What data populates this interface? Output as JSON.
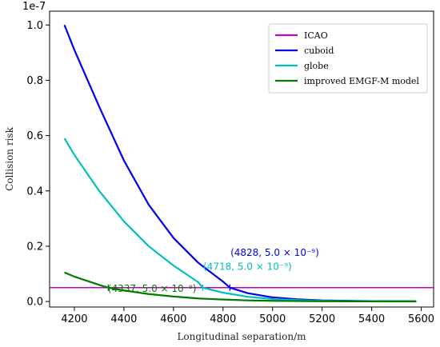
{
  "chart_data": {
    "type": "line",
    "xlabel": "Longitudinal separation/m",
    "ylabel": "Collision risk",
    "y_offset_label": "1e-7",
    "xlim": [
      4100,
      5650
    ],
    "ylim": [
      -0.02,
      1.05
    ],
    "x_ticks": [
      4200,
      4400,
      4600,
      4800,
      5000,
      5200,
      5400,
      5600
    ],
    "y_ticks": [
      0.0,
      0.2,
      0.4,
      0.6,
      0.8,
      1.0
    ],
    "x_tick_labels": [
      "4200",
      "4400",
      "4600",
      "4800",
      "5000",
      "5200",
      "5400",
      "5600"
    ],
    "y_tick_labels": [
      "0.0",
      "0.2",
      "0.4",
      "0.6",
      "0.8",
      "1.0"
    ],
    "legend_position": "top-right",
    "grid": false,
    "series": [
      {
        "name": "ICAO",
        "color": "#bf00bf",
        "x": [
          4100,
          5650
        ],
        "y": [
          0.05,
          0.05
        ]
      },
      {
        "name": "cuboid",
        "color": "#0000ee",
        "x": [
          4160,
          4200,
          4300,
          4400,
          4500,
          4600,
          4700,
          4800,
          4828,
          4900,
          5000,
          5100,
          5200,
          5300,
          5400,
          5500,
          5580
        ],
        "y": [
          1.0,
          0.91,
          0.705,
          0.51,
          0.35,
          0.23,
          0.14,
          0.072,
          0.05,
          0.03,
          0.015,
          0.008,
          0.004,
          0.0025,
          0.0015,
          0.001,
          0.0008
        ]
      },
      {
        "name": "globe",
        "color": "#00bfbf",
        "x": [
          4160,
          4200,
          4300,
          4400,
          4500,
          4600,
          4700,
          4718,
          4800,
          4900,
          5000,
          5100,
          5200,
          5300,
          5400,
          5500,
          5580
        ],
        "y": [
          0.59,
          0.53,
          0.4,
          0.29,
          0.2,
          0.13,
          0.07,
          0.05,
          0.032,
          0.017,
          0.009,
          0.005,
          0.0025,
          0.0015,
          0.001,
          0.0007,
          0.0005
        ]
      },
      {
        "name": "improved EMGF-M model",
        "color": "#007a00",
        "x": [
          4160,
          4200,
          4300,
          4337,
          4400,
          4500,
          4600,
          4700,
          4800,
          4900,
          5000,
          5100,
          5200,
          5300,
          5400,
          5500,
          5580
        ],
        "y": [
          0.105,
          0.09,
          0.06,
          0.05,
          0.04,
          0.027,
          0.018,
          0.011,
          0.007,
          0.004,
          0.0025,
          0.0015,
          0.001,
          0.0006,
          0.0004,
          0.0003,
          0.0002
        ]
      }
    ],
    "annotations": [
      {
        "text": "(4828, 5.0 × 10⁻⁹)",
        "color": "#0000ee",
        "x": 4828,
        "y": 0.05,
        "label_x": 4830,
        "label_y": 0.165
      },
      {
        "text": "(4718, 5.0 × 10⁻⁹)",
        "color": "#00bfbf",
        "x": 4718,
        "y": 0.05,
        "label_x": 4720,
        "label_y": 0.115
      },
      {
        "text": "(4337, 5.0 × 10⁻⁹)",
        "color": "#007a00",
        "x": 4337,
        "y": 0.05,
        "label_x": 4335,
        "label_y": 0.035
      }
    ]
  }
}
